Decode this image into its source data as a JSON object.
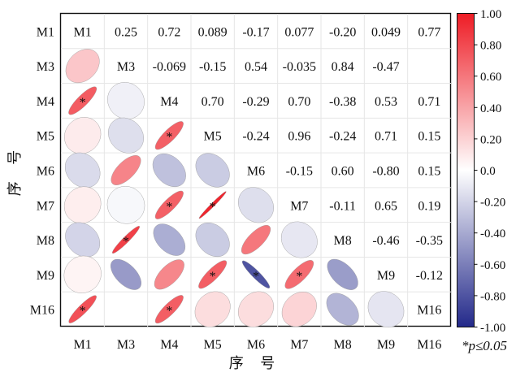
{
  "chart_data": {
    "type": "heatmap",
    "variables": [
      "M1",
      "M3",
      "M4",
      "M5",
      "M6",
      "M7",
      "M8",
      "M9",
      "M16"
    ],
    "matrix": [
      [
        1.0,
        0.25,
        0.72,
        0.089,
        -0.17,
        0.077,
        -0.2,
        0.049,
        0.77
      ],
      [
        0.25,
        1.0,
        -0.069,
        -0.15,
        0.54,
        -0.035,
        0.84,
        -0.47,
        null
      ],
      [
        0.72,
        -0.069,
        1.0,
        0.7,
        -0.29,
        0.7,
        -0.38,
        0.53,
        0.71
      ],
      [
        0.089,
        -0.15,
        0.7,
        1.0,
        -0.24,
        0.96,
        -0.24,
        0.71,
        0.15
      ],
      [
        -0.17,
        0.54,
        -0.29,
        -0.24,
        1.0,
        -0.15,
        0.6,
        -0.8,
        0.15
      ],
      [
        0.077,
        -0.035,
        0.7,
        0.96,
        -0.15,
        1.0,
        -0.11,
        0.65,
        0.19
      ],
      [
        -0.2,
        0.84,
        -0.38,
        -0.24,
        0.6,
        -0.11,
        1.0,
        -0.46,
        -0.35
      ],
      [
        0.049,
        -0.47,
        0.53,
        0.71,
        -0.8,
        0.65,
        -0.46,
        1.0,
        -0.12
      ],
      [
        0.77,
        null,
        0.71,
        0.15,
        0.15,
        0.19,
        -0.35,
        -0.12,
        1.0
      ]
    ],
    "upper_labels": [
      [
        "M1",
        "0.25",
        "0.72",
        "0.089",
        "-0.17",
        "0.077",
        "-0.20",
        "0.049",
        "0.77"
      ],
      [
        "",
        "M3",
        "-0.069",
        "-0.15",
        "0.54",
        "-0.035",
        "0.84",
        "-0.47",
        ""
      ],
      [
        "",
        "",
        "M4",
        "0.70",
        "-0.29",
        "0.70",
        "-0.38",
        "0.53",
        "0.71"
      ],
      [
        "",
        "",
        "",
        "M5",
        "-0.24",
        "0.96",
        "-0.24",
        "0.71",
        "0.15"
      ],
      [
        "",
        "",
        "",
        "",
        "M6",
        "-0.15",
        "0.60",
        "-0.80",
        "0.15"
      ],
      [
        "",
        "",
        "",
        "",
        "",
        "M7",
        "-0.11",
        "0.65",
        "0.19"
      ],
      [
        "",
        "",
        "",
        "",
        "",
        "",
        "M8",
        "-0.46",
        "-0.35"
      ],
      [
        "",
        "",
        "",
        "",
        "",
        "",
        "",
        "M9",
        "-0.12"
      ],
      [
        "",
        "",
        "",
        "",
        "",
        "",
        "",
        "",
        "M16"
      ]
    ],
    "significant_pairs": [
      [
        "M4",
        "M1"
      ],
      [
        "M5",
        "M4"
      ],
      [
        "M7",
        "M4"
      ],
      [
        "M7",
        "M5"
      ],
      [
        "M8",
        "M3"
      ],
      [
        "M9",
        "M5"
      ],
      [
        "M9",
        "M6"
      ],
      [
        "M9",
        "M7"
      ],
      [
        "M16",
        "M1"
      ],
      [
        "M16",
        "M4"
      ]
    ],
    "significance_marker": "*",
    "xlabel": "序 号",
    "ylabel": "序 号",
    "colorbar": {
      "range": [
        -1.0,
        1.0
      ],
      "ticks": [
        "1.00",
        "0.80",
        "0.60",
        "0.40",
        "0.20",
        "0.0",
        "-0.20",
        "-0.40",
        "-0.60",
        "-0.80",
        "-1.00"
      ],
      "note": "*p≤0.05",
      "color_negative": "#23298a",
      "color_zero": "#ffffff",
      "color_positive": "#ee1c25"
    }
  }
}
